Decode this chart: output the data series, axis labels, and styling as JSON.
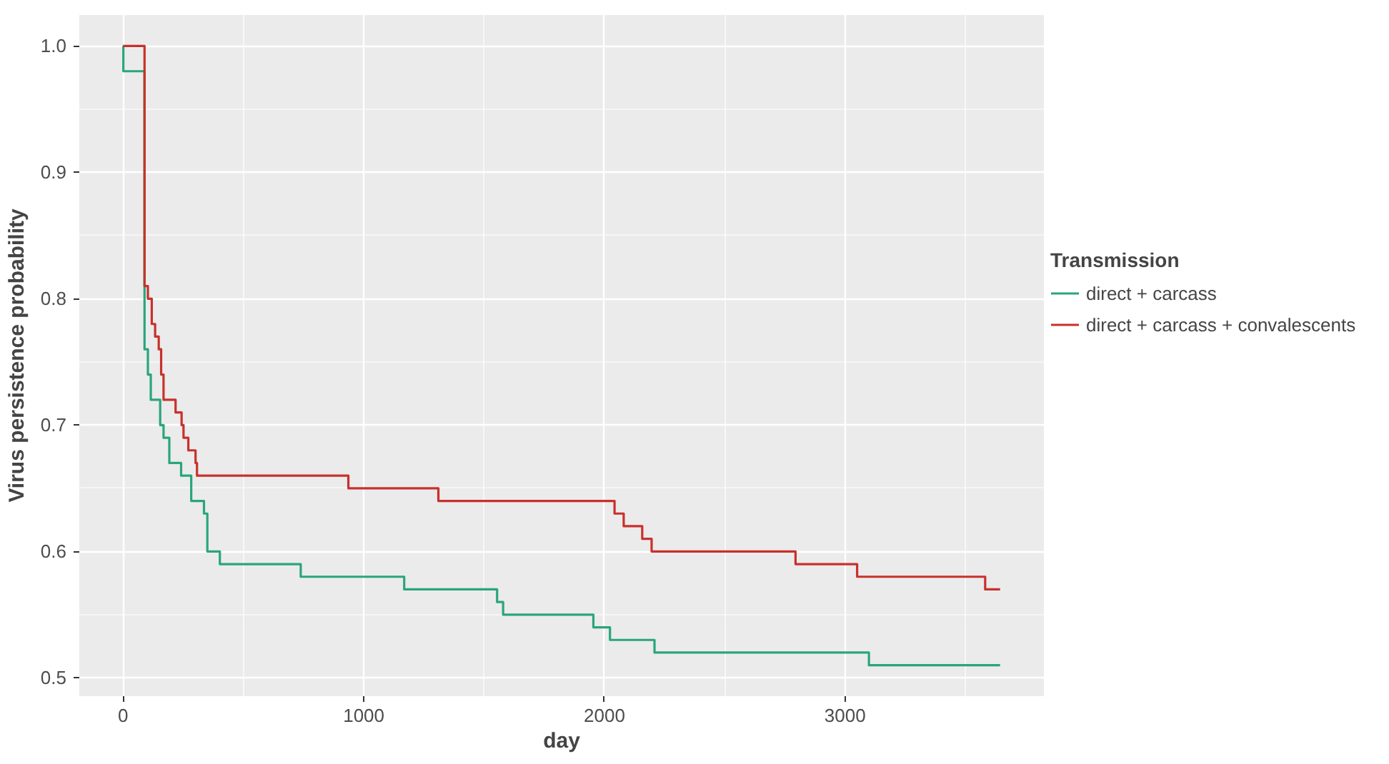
{
  "chart_data": {
    "type": "step",
    "xlabel": "day",
    "ylabel": "Virus persistence probability",
    "legend_title": "Transmission",
    "legend": "right",
    "grid": true,
    "xlim": [
      -182,
      3826
    ],
    "ylim": [
      0.4855,
      1.0245
    ],
    "xticks": [
      0,
      1000,
      2000,
      3000
    ],
    "yticks": [
      0.5,
      0.6,
      0.7,
      0.8,
      0.9,
      {
        "value": 1,
        "label": "1.0"
      }
    ],
    "series": [
      {
        "name": "direct + carcass",
        "color": "#2aa57e",
        "x": [
          0,
          1,
          89,
          103,
          115,
          154,
          168,
          192,
          241,
          283,
          336,
          350,
          402,
          738,
          1168,
          1554,
          1579,
          1954,
          2023,
          2208,
          3099,
          3644
        ],
        "values": [
          1.0,
          0.98,
          0.76,
          0.74,
          0.72,
          0.7,
          0.69,
          0.67,
          0.66,
          0.64,
          0.63,
          0.6,
          0.59,
          0.58,
          0.57,
          0.56,
          0.55,
          0.54,
          0.53,
          0.52,
          0.51,
          0.51
        ]
      },
      {
        "name": "direct + carcass + convalescents",
        "color": "#c8312c",
        "x": [
          0,
          89,
          103,
          119,
          133,
          148,
          158,
          168,
          218,
          243,
          251,
          271,
          301,
          307,
          936,
          1310,
          2042,
          2080,
          2157,
          2196,
          2794,
          3050,
          3582,
          3644
        ],
        "values": [
          1.0,
          0.81,
          0.8,
          0.78,
          0.77,
          0.76,
          0.74,
          0.72,
          0.71,
          0.7,
          0.69,
          0.68,
          0.67,
          0.66,
          0.65,
          0.64,
          0.63,
          0.62,
          0.61,
          0.6,
          0.59,
          0.58,
          0.57,
          0.57
        ]
      }
    ]
  }
}
